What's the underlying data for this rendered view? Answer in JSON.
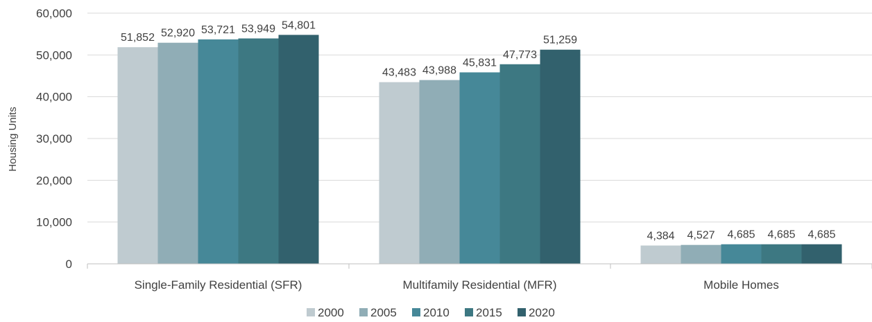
{
  "chart_data": {
    "type": "bar",
    "ylabel": "Housing Units",
    "ylim": [
      0,
      60000
    ],
    "ytick_step": 10000,
    "yticks": [
      "0",
      "10,000",
      "20,000",
      "30,000",
      "40,000",
      "50,000",
      "60,000"
    ],
    "grid": true,
    "legend_position": "bottom",
    "categories": [
      "Single-Family Residential (SFR)",
      "Multifamily Residential (MFR)",
      "Mobile Homes"
    ],
    "series": [
      {
        "name": "2000",
        "color": "#bfcbd0",
        "values": [
          51852,
          43483,
          4384
        ],
        "labels": [
          "51,852",
          "43,483",
          "4,384"
        ]
      },
      {
        "name": "2005",
        "color": "#90adb6",
        "values": [
          52920,
          43988,
          4527
        ],
        "labels": [
          "52,920",
          "43,988",
          "4,527"
        ]
      },
      {
        "name": "2010",
        "color": "#468898",
        "values": [
          53721,
          45831,
          4685
        ],
        "labels": [
          "53,721",
          "45,831",
          "4,685"
        ]
      },
      {
        "name": "2015",
        "color": "#3d7882",
        "values": [
          53949,
          47773,
          4685
        ],
        "labels": [
          "53,949",
          "47,773",
          "4,685"
        ]
      },
      {
        "name": "2020",
        "color": "#32616d",
        "values": [
          54801,
          51259,
          4685
        ],
        "labels": [
          "54,801",
          "51,259",
          "4,685"
        ]
      }
    ]
  }
}
